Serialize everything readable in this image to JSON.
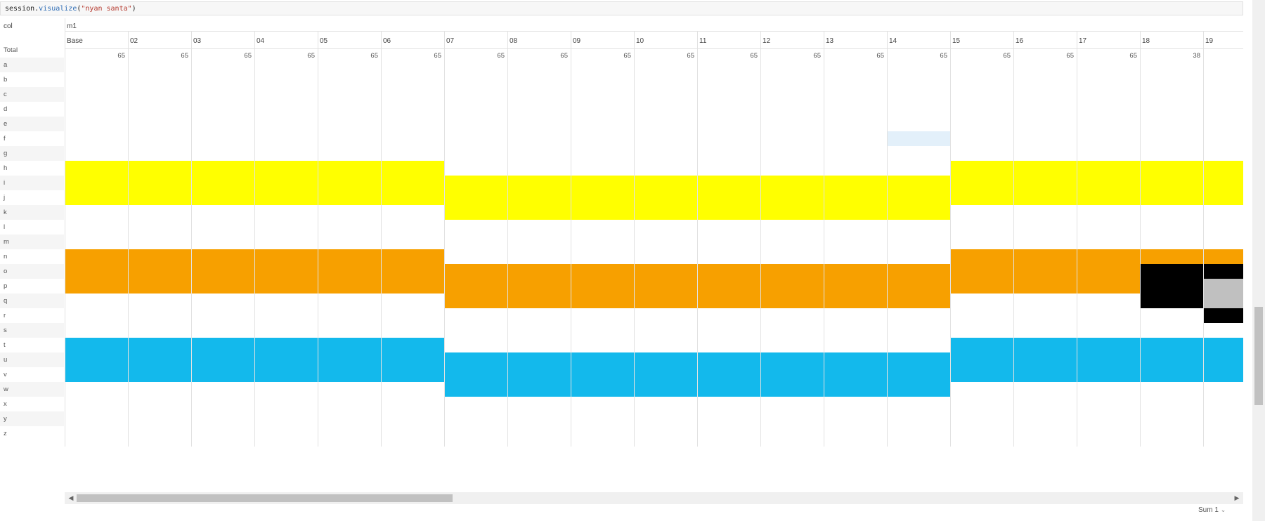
{
  "code": {
    "prefix": "session.",
    "fn": "visualize",
    "open": "(",
    "arg": "\"nyan santa\"",
    "close": ")"
  },
  "header": {
    "corner_label": "col",
    "group_label": "m1"
  },
  "columns": [
    "Base",
    "02",
    "03",
    "04",
    "05",
    "06",
    "07",
    "08",
    "09",
    "10",
    "11",
    "12",
    "13",
    "14",
    "15",
    "16",
    "17",
    "18",
    "19"
  ],
  "totals_label": "Total",
  "totals": [
    65,
    65,
    65,
    65,
    65,
    65,
    65,
    65,
    65,
    65,
    65,
    65,
    65,
    65,
    65,
    65,
    65,
    38,
    ""
  ],
  "rows": [
    "a",
    "b",
    "c",
    "d",
    "e",
    "f",
    "g",
    "h",
    "i",
    "j",
    "k",
    "l",
    "m",
    "n",
    "o",
    "p",
    "q",
    "r",
    "s",
    "t",
    "u",
    "v",
    "w",
    "x",
    "y",
    "z"
  ],
  "colors": {
    "yellow": "#ffff00",
    "orange": "#f7a000",
    "blue": "#13b9ec",
    "black": "#000000",
    "grey": "#c0c0c0",
    "pale_blue": "#e3f0fa"
  },
  "status": {
    "sum_label": "Sum 1",
    "chevron_icon": "chevron-down-icon"
  },
  "icons": {
    "scroll_left": "scroll-left-arrow-icon",
    "scroll_right": "scroll-right-arrow-icon"
  }
}
